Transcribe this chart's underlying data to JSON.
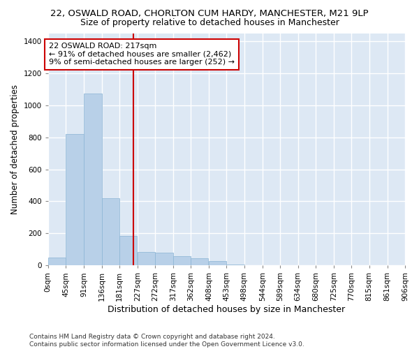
{
  "title": "22, OSWALD ROAD, CHORLTON CUM HARDY, MANCHESTER, M21 9LP",
  "subtitle": "Size of property relative to detached houses in Manchester",
  "xlabel": "Distribution of detached houses by size in Manchester",
  "ylabel": "Number of detached properties",
  "bar_color": "#b8d0e8",
  "bar_edge_color": "#8ab4d4",
  "background_color": "#dde8f4",
  "grid_color": "#ffffff",
  "property_size": 217,
  "property_line_color": "#cc0000",
  "annotation_text": "22 OSWALD ROAD: 217sqm\n← 91% of detached houses are smaller (2,462)\n9% of semi-detached houses are larger (252) →",
  "annotation_box_color": "#cc0000",
  "bins": [
    0,
    45,
    91,
    136,
    181,
    227,
    272,
    317,
    362,
    408,
    453,
    498,
    544,
    589,
    634,
    680,
    725,
    770,
    815,
    861,
    906
  ],
  "bin_labels": [
    "0sqm",
    "45sqm",
    "91sqm",
    "136sqm",
    "181sqm",
    "227sqm",
    "272sqm",
    "317sqm",
    "362sqm",
    "408sqm",
    "453sqm",
    "498sqm",
    "544sqm",
    "589sqm",
    "634sqm",
    "680sqm",
    "725sqm",
    "770sqm",
    "815sqm",
    "861sqm",
    "906sqm"
  ],
  "counts": [
    50,
    820,
    1075,
    420,
    185,
    85,
    80,
    60,
    45,
    28,
    5,
    2,
    0,
    0,
    0,
    0,
    0,
    0,
    0,
    0
  ],
  "ylim": [
    0,
    1450
  ],
  "yticks": [
    0,
    200,
    400,
    600,
    800,
    1000,
    1200,
    1400
  ],
  "footnote": "Contains HM Land Registry data © Crown copyright and database right 2024.\nContains public sector information licensed under the Open Government Licence v3.0.",
  "title_fontsize": 9.5,
  "subtitle_fontsize": 9,
  "xlabel_fontsize": 9,
  "ylabel_fontsize": 8.5,
  "tick_fontsize": 7.5,
  "annotation_fontsize": 8,
  "footnote_fontsize": 6.5,
  "fig_bg": "#ffffff"
}
